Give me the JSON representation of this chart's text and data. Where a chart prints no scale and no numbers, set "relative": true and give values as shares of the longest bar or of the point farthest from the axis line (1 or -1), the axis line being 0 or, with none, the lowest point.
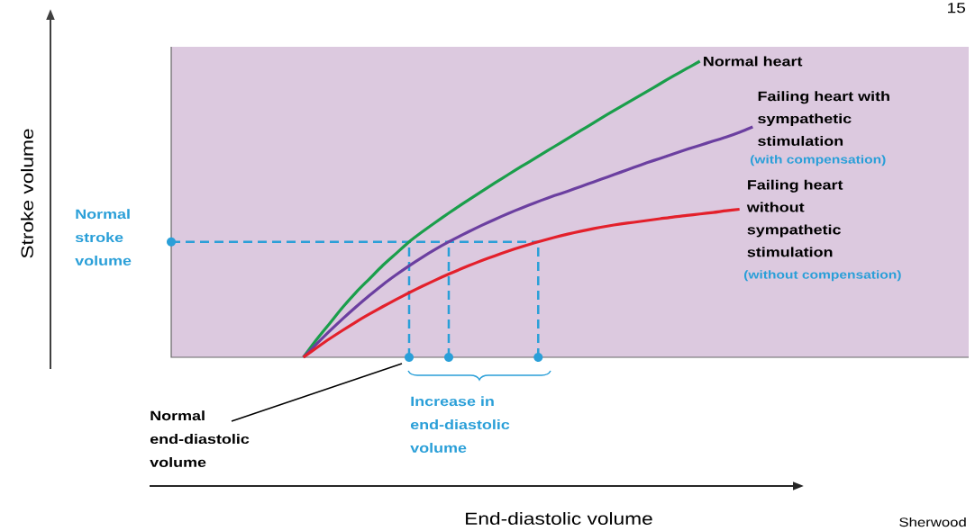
{
  "chart_data": {
    "type": "line",
    "relative": true,
    "categories": [
      null,
      null,
      null,
      null,
      null,
      null,
      null,
      null,
      null,
      null,
      null,
      null,
      null,
      null,
      null,
      null,
      null,
      null,
      null,
      null,
      null,
      null,
      null,
      null,
      null,
      null,
      null,
      null,
      null,
      null,
      null,
      null,
      null,
      null,
      null,
      null,
      null,
      null,
      null,
      null,
      null,
      null,
      null,
      null,
      null,
      null,
      null,
      null,
      null,
      null,
      null,
      null,
      null,
      null,
      null,
      null,
      null,
      null,
      null,
      null,
      null
    ],
    "series": [
      {
        "name": "Normal heart",
        "color": "#1a9e4b",
        "values": [
          null,
          null,
          null,
          null,
          null,
          null,
          null,
          null,
          null,
          null,
          0,
          0.06,
          0.115,
          0.17,
          0.22,
          0.265,
          0.31,
          0.35,
          0.39,
          0.424,
          0.456,
          0.487,
          0.517,
          0.546,
          0.575,
          0.603,
          0.631,
          0.658,
          0.685,
          0.712,
          0.739,
          0.766,
          0.793,
          0.82,
          0.846,
          0.872,
          0.898,
          0.924,
          0.95,
          0.975,
          1.0,
          null,
          null,
          null,
          null,
          null,
          null,
          null,
          null,
          null,
          null,
          null,
          null,
          null,
          null,
          null,
          null,
          null,
          null,
          null,
          null
        ]
      },
      {
        "name": "Failing heart with sympathetic stimulation",
        "color": "#6b3fa0",
        "values": [
          null,
          null,
          null,
          null,
          null,
          null,
          null,
          null,
          null,
          null,
          0,
          0.045,
          0.089,
          0.131,
          0.171,
          0.209,
          0.245,
          0.278,
          0.309,
          0.338,
          0.365,
          0.39,
          0.413,
          0.435,
          0.456,
          0.476,
          0.495,
          0.513,
          0.53,
          0.546,
          0.561,
          0.577,
          0.593,
          0.609,
          0.625,
          0.641,
          0.657,
          0.672,
          0.687,
          0.702,
          0.716,
          0.73,
          0.744,
          0.76,
          0.778,
          null,
          null,
          null,
          null,
          null,
          null,
          null,
          null,
          null,
          null,
          null,
          null,
          null,
          null,
          null,
          null
        ]
      },
      {
        "name": "Failing heart without sympathetic stimulation",
        "color": "#e3202b",
        "values": [
          null,
          null,
          null,
          null,
          null,
          null,
          null,
          null,
          null,
          null,
          0,
          0.032,
          0.063,
          0.092,
          0.12,
          0.146,
          0.171,
          0.195,
          0.218,
          0.24,
          0.261,
          0.281,
          0.3,
          0.318,
          0.335,
          0.351,
          0.366,
          0.38,
          0.393,
          0.405,
          0.416,
          0.426,
          0.435,
          0.443,
          0.45,
          0.456,
          0.462,
          0.468,
          0.474,
          0.479,
          0.484,
          0.489,
          0.495,
          0.5,
          null,
          null,
          null,
          null,
          null,
          null,
          null,
          null,
          null,
          null,
          null,
          null,
          null,
          null,
          null,
          null,
          null
        ]
      }
    ],
    "ref_lines": [
      {
        "axis": "y",
        "value": 0.39,
        "color": "#2a9fd8",
        "line_style": "dashed"
      }
    ],
    "annotations": [
      "Normal stroke volume",
      "(with compensation)",
      "(without compensation)",
      "Increase in end-diastolic volume",
      "Normal end-diastolic volume",
      "Sherwood",
      "15",
      "End-diastolic volume",
      "Stroke volume"
    ],
    "marker": "none",
    "line_style": "solid"
  }
}
